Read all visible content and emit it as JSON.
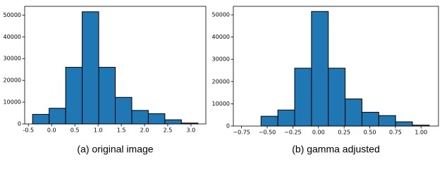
{
  "chart_data": [
    {
      "type": "histogram",
      "caption": "(a) original image",
      "color": "#1f77b4",
      "bins": [
        -0.41,
        -0.054,
        0.302,
        0.658,
        1.014,
        1.37,
        1.726,
        2.082,
        2.438,
        2.794,
        3.15
      ],
      "values": [
        4400,
        7200,
        26000,
        51500,
        26000,
        12200,
        6200,
        4700,
        1900,
        400
      ],
      "xlim": [
        -0.58,
        3.32
      ],
      "ylim": [
        0,
        54000
      ],
      "xticks": [
        -0.5,
        {
          "value": 0,
          "label": "0.0"
        },
        0.5,
        {
          "value": 1,
          "label": "1.0"
        },
        1.5,
        {
          "value": 2,
          "label": "2.0"
        },
        2.5,
        {
          "value": 3,
          "label": "3.0"
        }
      ],
      "yticks": [
        0,
        10000,
        20000,
        30000,
        40000,
        50000
      ]
    },
    {
      "type": "histogram",
      "caption": "(b) gamma adjusted",
      "color": "#1f77b4",
      "bins": [
        -0.56,
        -0.396,
        -0.232,
        -0.068,
        0.096,
        0.26,
        0.424,
        0.588,
        0.752,
        0.916,
        1.08
      ],
      "values": [
        4400,
        7200,
        26000,
        51500,
        26000,
        12200,
        6200,
        4700,
        1900,
        400
      ],
      "xlim": [
        -0.83,
        1.17
      ],
      "ylim": [
        0,
        53800
      ],
      "xticks": [
        {
          "value": -0.75,
          "label": "−0.75"
        },
        {
          "value": -0.5,
          "label": "−0.50"
        },
        {
          "value": -0.25,
          "label": "−0.25"
        },
        {
          "value": 0,
          "label": "0.00"
        },
        0.25,
        {
          "value": 0.5,
          "label": "0.50"
        },
        0.75,
        {
          "value": 1,
          "label": "1.00"
        }
      ],
      "yticks": [
        0,
        10000,
        20000,
        30000,
        40000,
        50000
      ]
    }
  ]
}
